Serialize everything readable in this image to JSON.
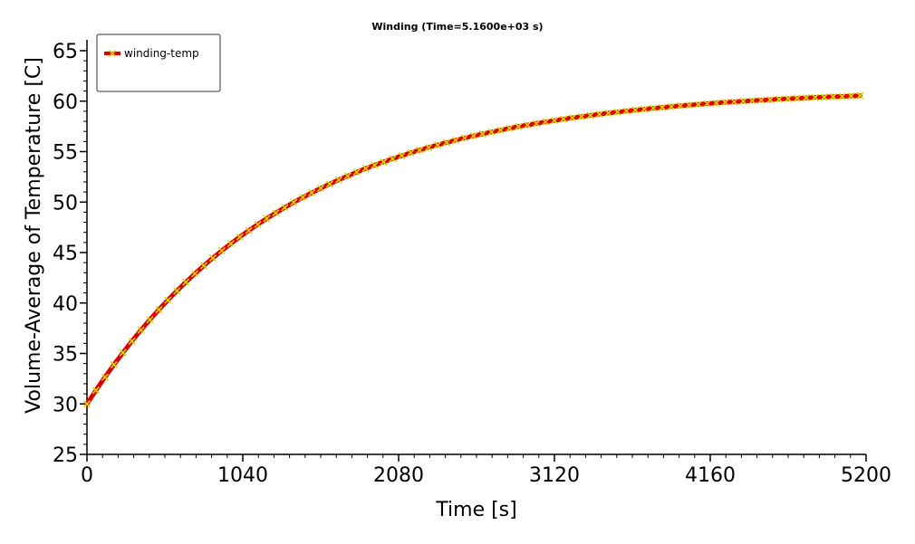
{
  "chart_data": {
    "type": "line",
    "title": "Winding (Time=5.1600e+03 s)",
    "xlabel": "Time [s]",
    "ylabel": "Volume-Average of Temperature [C]",
    "xlim": [
      0,
      5200
    ],
    "ylim": [
      25,
      65
    ],
    "xticks": [
      0,
      1040,
      2080,
      3120,
      4160,
      5200
    ],
    "xtick_labels": [
      "0",
      "1040",
      "2080",
      "3120",
      "4160",
      "5200"
    ],
    "yticks": [
      25,
      30,
      35,
      40,
      45,
      50,
      55,
      60,
      65
    ],
    "ytick_labels": [
      "25",
      "30",
      "35",
      "40",
      "45",
      "50",
      "55",
      "60",
      "65"
    ],
    "grid": false,
    "legend_position": "top-left",
    "series": [
      {
        "name": "winding-temp",
        "line_color": "#e00000",
        "marker_color": "#d8d800",
        "marker": "x",
        "x": [
          0,
          60,
          120,
          180,
          240,
          300,
          360,
          420,
          480,
          540,
          600,
          660,
          720,
          780,
          840,
          900,
          960,
          1020,
          1080,
          1140,
          1200,
          1260,
          1320,
          1380,
          1440,
          1500,
          1560,
          1620,
          1680,
          1740,
          1800,
          1860,
          1920,
          1980,
          2040,
          2100,
          2160,
          2220,
          2280,
          2340,
          2400,
          2460,
          2520,
          2580,
          2640,
          2700,
          2760,
          2820,
          2880,
          2940,
          3000,
          3060,
          3120,
          3180,
          3240,
          3300,
          3360,
          3420,
          3480,
          3540,
          3600,
          3660,
          3720,
          3780,
          3840,
          3900,
          3960,
          4020,
          4080,
          4140,
          4200,
          4260,
          4320,
          4380,
          4440,
          4500,
          4560,
          4620,
          4680,
          4740,
          4800,
          4860,
          4920,
          4980,
          5040,
          5100,
          5160
        ],
        "y": [
          30.0,
          31.35,
          32.65,
          33.89,
          35.08,
          36.22,
          37.31,
          38.35,
          39.34,
          40.29,
          41.2,
          42.07,
          42.9,
          43.7,
          44.46,
          45.19,
          45.88,
          46.55,
          47.18,
          47.79,
          48.37,
          48.93,
          49.46,
          49.97,
          50.46,
          50.92,
          51.37,
          51.79,
          52.2,
          52.59,
          52.96,
          53.32,
          53.66,
          53.98,
          54.29,
          54.59,
          54.88,
          55.15,
          55.41,
          55.66,
          55.9,
          56.13,
          56.35,
          56.56,
          56.76,
          56.95,
          57.13,
          57.31,
          57.48,
          57.64,
          57.79,
          57.94,
          58.08,
          58.22,
          58.35,
          58.47,
          58.59,
          58.71,
          58.82,
          58.92,
          59.02,
          59.12,
          59.21,
          59.3,
          59.38,
          59.46,
          59.54,
          59.61,
          59.68,
          59.75,
          59.82,
          59.88,
          59.94,
          59.99,
          60.05,
          60.1,
          60.15,
          60.2,
          60.24,
          60.28,
          60.33,
          60.37,
          60.4,
          60.44,
          60.47,
          60.51,
          60.54
        ]
      }
    ]
  }
}
